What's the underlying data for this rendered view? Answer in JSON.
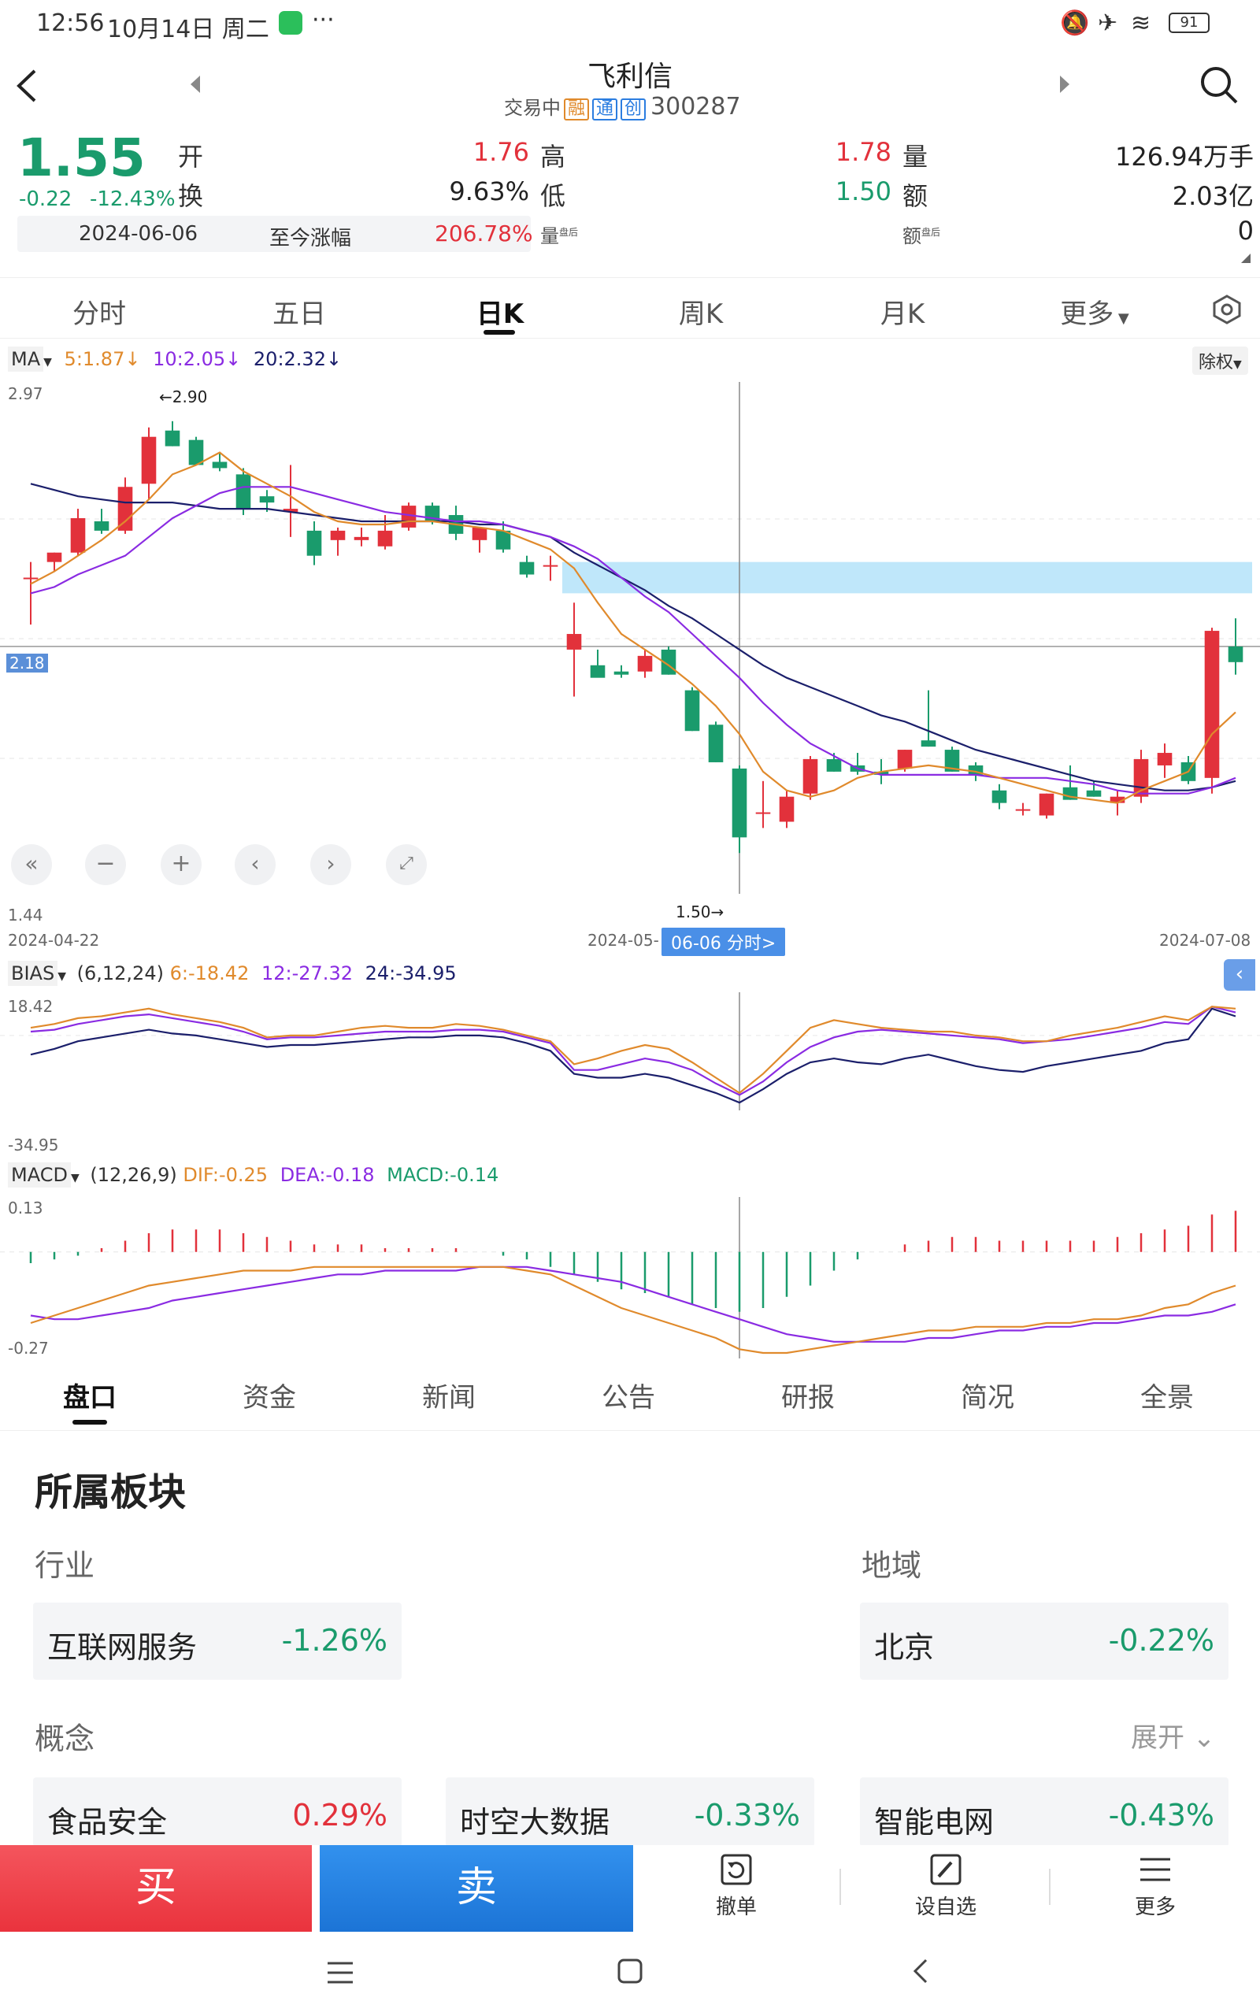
{
  "status_bar": {
    "time": "12:56",
    "date": "10月14日 周二",
    "more": "···",
    "battery": "91"
  },
  "header": {
    "title": "飞利信",
    "trading_status": "交易中",
    "tag_rong": "融",
    "tag_tong": "通",
    "tag_chuang": "创",
    "code": "300287"
  },
  "quote": {
    "price": "1.55",
    "change": "-0.22",
    "change_pct": "-12.43%",
    "open_label": "开",
    "open_value": "1.76",
    "high_label": "高",
    "high_value": "1.78",
    "volume_label": "量",
    "volume_value": "126.94万手",
    "turnover_label": "换",
    "turnover_value": "9.63%",
    "low_label": "低",
    "low_value": "1.50",
    "amount_label": "额",
    "amount_value": "2.03亿",
    "since_date": "2024-06-06",
    "since_label": "至今涨幅",
    "since_value": "206.78%",
    "after_vol_label": "量",
    "after_amt_label": "额",
    "after_tag": "盘后",
    "after_value": "0"
  },
  "period_tabs": [
    "分时",
    "五日",
    "日K",
    "周K",
    "月K",
    "更多"
  ],
  "ma_legend": {
    "name": "MA",
    "ma5": "5:1.87",
    "ma10": "10:2.05",
    "ma20": "20:2.32",
    "right_btn": "除权"
  },
  "price_axis": {
    "top": "2.97",
    "mid": "2.18",
    "bottom": "1.44",
    "high_mark": "←2.90",
    "low_mark": "1.50→"
  },
  "date_axis": {
    "left": "2024-04-22",
    "mid": "2024-05-",
    "cursor": "06-06 分时>",
    "right": "2024-07-08"
  },
  "bias_legend": {
    "name": "BIAS",
    "params": "(6,12,24)",
    "b6": "6:-18.42",
    "b12": "12:-27.32",
    "b24": "24:-34.95",
    "top": "18.42",
    "bottom": "-34.95"
  },
  "macd_legend": {
    "name": "MACD",
    "params": "(12,26,9)",
    "dif": "DIF:-0.25",
    "dea": "DEA:-0.18",
    "macd": "MACD:-0.14",
    "top": "0.13",
    "bottom": "-0.27"
  },
  "info_tabs": [
    "盘口",
    "资金",
    "新闻",
    "公告",
    "研报",
    "简况",
    "全景"
  ],
  "sector": {
    "title": "所属板块",
    "industry_label": "行业",
    "region_label": "地域",
    "concept_label": "概念",
    "expand_label": "展开",
    "industry": {
      "name": "互联网服务",
      "value": "-1.26%"
    },
    "region": {
      "name": "北京",
      "value": "-0.22%"
    },
    "concepts": [
      {
        "name": "食品安全",
        "value": "0.29%"
      },
      {
        "name": "时空大数据",
        "value": "-0.33%"
      },
      {
        "name": "智能电网",
        "value": "-0.43%"
      }
    ]
  },
  "actions": {
    "buy": "买",
    "sell": "卖",
    "cancel": "撤单",
    "watch": "设自选",
    "more": "更多"
  },
  "colors": {
    "up": "#e2313b",
    "down": "#1a9b6c",
    "ma5": "#e08a2c",
    "ma10": "#8a2be2",
    "ma20": "#1b1f6b",
    "buy": "#f0424c",
    "sell": "#1f7fe0"
  },
  "chart_data": {
    "type": "candlestick",
    "x_start": "2024-04-22",
    "x_end": "2024-07-08",
    "ylim": [
      1.44,
      2.97
    ],
    "candles": [
      {
        "o": 2.4,
        "h": 2.45,
        "l": 2.25,
        "c": 2.4
      },
      {
        "o": 2.45,
        "h": 2.48,
        "l": 2.42,
        "c": 2.48
      },
      {
        "o": 2.48,
        "h": 2.62,
        "l": 2.47,
        "c": 2.59
      },
      {
        "o": 2.58,
        "h": 2.62,
        "l": 2.54,
        "c": 2.55
      },
      {
        "o": 2.55,
        "h": 2.72,
        "l": 2.54,
        "c": 2.69
      },
      {
        "o": 2.7,
        "h": 2.88,
        "l": 2.65,
        "c": 2.85
      },
      {
        "o": 2.87,
        "h": 2.9,
        "l": 2.82,
        "c": 2.82
      },
      {
        "o": 2.84,
        "h": 2.85,
        "l": 2.76,
        "c": 2.76
      },
      {
        "o": 2.77,
        "h": 2.8,
        "l": 2.74,
        "c": 2.75
      },
      {
        "o": 2.73,
        "h": 2.75,
        "l": 2.6,
        "c": 2.62
      },
      {
        "o": 2.66,
        "h": 2.68,
        "l": 2.61,
        "c": 2.64
      },
      {
        "o": 2.61,
        "h": 2.76,
        "l": 2.53,
        "c": 2.62
      },
      {
        "o": 2.55,
        "h": 2.58,
        "l": 2.44,
        "c": 2.47
      },
      {
        "o": 2.52,
        "h": 2.56,
        "l": 2.47,
        "c": 2.55
      },
      {
        "o": 2.52,
        "h": 2.56,
        "l": 2.5,
        "c": 2.53
      },
      {
        "o": 2.5,
        "h": 2.6,
        "l": 2.49,
        "c": 2.55
      },
      {
        "o": 2.56,
        "h": 2.64,
        "l": 2.55,
        "c": 2.63
      },
      {
        "o": 2.63,
        "h": 2.64,
        "l": 2.57,
        "c": 2.58
      },
      {
        "o": 2.6,
        "h": 2.63,
        "l": 2.52,
        "c": 2.54
      },
      {
        "o": 2.52,
        "h": 2.56,
        "l": 2.48,
        "c": 2.56
      },
      {
        "o": 2.55,
        "h": 2.58,
        "l": 2.48,
        "c": 2.49
      },
      {
        "o": 2.45,
        "h": 2.47,
        "l": 2.4,
        "c": 2.41
      },
      {
        "o": 2.44,
        "h": 2.47,
        "l": 2.39,
        "c": 2.44
      },
      {
        "o": 2.17,
        "h": 2.32,
        "l": 2.02,
        "c": 2.22
      },
      {
        "o": 2.12,
        "h": 2.17,
        "l": 2.09,
        "c": 2.08
      },
      {
        "o": 2.1,
        "h": 2.12,
        "l": 2.08,
        "c": 2.09
      },
      {
        "o": 2.1,
        "h": 2.17,
        "l": 2.08,
        "c": 2.15
      },
      {
        "o": 2.17,
        "h": 2.18,
        "l": 2.09,
        "c": 2.09
      },
      {
        "o": 2.04,
        "h": 2.05,
        "l": 1.91,
        "c": 1.91
      },
      {
        "o": 1.93,
        "h": 1.94,
        "l": 1.81,
        "c": 1.81
      },
      {
        "o": 1.79,
        "h": 1.8,
        "l": 1.52,
        "c": 1.57
      },
      {
        "o": 1.65,
        "h": 1.75,
        "l": 1.6,
        "c": 1.65
      },
      {
        "o": 1.62,
        "h": 1.72,
        "l": 1.6,
        "c": 1.7
      },
      {
        "o": 1.71,
        "h": 1.83,
        "l": 1.69,
        "c": 1.82
      },
      {
        "o": 1.82,
        "h": 1.84,
        "l": 1.78,
        "c": 1.78
      },
      {
        "o": 1.8,
        "h": 1.84,
        "l": 1.77,
        "c": 1.78
      },
      {
        "o": 1.78,
        "h": 1.82,
        "l": 1.74,
        "c": 1.77
      },
      {
        "o": 1.79,
        "h": 1.85,
        "l": 1.78,
        "c": 1.85
      },
      {
        "o": 1.88,
        "h": 2.04,
        "l": 1.86,
        "c": 1.86
      },
      {
        "o": 1.85,
        "h": 1.86,
        "l": 1.78,
        "c": 1.78
      },
      {
        "o": 1.8,
        "h": 1.81,
        "l": 1.75,
        "c": 1.77
      },
      {
        "o": 1.72,
        "h": 1.74,
        "l": 1.66,
        "c": 1.68
      },
      {
        "o": 1.66,
        "h": 1.68,
        "l": 1.64,
        "c": 1.66
      },
      {
        "o": 1.64,
        "h": 1.71,
        "l": 1.63,
        "c": 1.71
      },
      {
        "o": 1.73,
        "h": 1.8,
        "l": 1.69,
        "c": 1.69
      },
      {
        "o": 1.72,
        "h": 1.75,
        "l": 1.7,
        "c": 1.7
      },
      {
        "o": 1.68,
        "h": 1.72,
        "l": 1.64,
        "c": 1.7
      },
      {
        "o": 1.7,
        "h": 1.85,
        "l": 1.68,
        "c": 1.82
      },
      {
        "o": 1.8,
        "h": 1.87,
        "l": 1.76,
        "c": 1.84
      },
      {
        "o": 1.81,
        "h": 1.83,
        "l": 1.74,
        "c": 1.75
      },
      {
        "o": 1.76,
        "h": 2.24,
        "l": 1.71,
        "c": 2.23
      },
      {
        "o": 2.18,
        "h": 2.27,
        "l": 2.09,
        "c": 2.13
      }
    ],
    "ma5": [
      2.38,
      2.42,
      2.47,
      2.52,
      2.58,
      2.65,
      2.73,
      2.76,
      2.8,
      2.74,
      2.7,
      2.66,
      2.61,
      2.58,
      2.57,
      2.57,
      2.58,
      2.58,
      2.57,
      2.56,
      2.55,
      2.52,
      2.49,
      2.43,
      2.32,
      2.22,
      2.17,
      2.12,
      2.06,
      1.99,
      1.9,
      1.78,
      1.72,
      1.7,
      1.72,
      1.76,
      1.78,
      1.79,
      1.8,
      1.79,
      1.78,
      1.76,
      1.74,
      1.72,
      1.7,
      1.69,
      1.68,
      1.72,
      1.75,
      1.78,
      1.9,
      1.97
    ],
    "ma10": [
      2.35,
      2.37,
      2.41,
      2.44,
      2.47,
      2.53,
      2.59,
      2.63,
      2.67,
      2.69,
      2.69,
      2.69,
      2.67,
      2.65,
      2.63,
      2.61,
      2.6,
      2.59,
      2.58,
      2.58,
      2.57,
      2.55,
      2.53,
      2.5,
      2.46,
      2.4,
      2.34,
      2.29,
      2.22,
      2.15,
      2.08,
      2.0,
      1.93,
      1.87,
      1.83,
      1.79,
      1.77,
      1.77,
      1.77,
      1.77,
      1.77,
      1.76,
      1.76,
      1.76,
      1.75,
      1.74,
      1.72,
      1.71,
      1.71,
      1.71,
      1.73,
      1.76
    ],
    "ma20": [
      2.7,
      2.68,
      2.66,
      2.65,
      2.64,
      2.64,
      2.64,
      2.63,
      2.62,
      2.62,
      2.62,
      2.61,
      2.6,
      2.59,
      2.58,
      2.58,
      2.58,
      2.58,
      2.58,
      2.57,
      2.57,
      2.55,
      2.53,
      2.48,
      2.44,
      2.4,
      2.36,
      2.31,
      2.27,
      2.22,
      2.17,
      2.12,
      2.08,
      2.05,
      2.02,
      1.99,
      1.96,
      1.94,
      1.91,
      1.88,
      1.85,
      1.83,
      1.81,
      1.79,
      1.77,
      1.75,
      1.74,
      1.73,
      1.72,
      1.72,
      1.73,
      1.75
    ],
    "bias": {
      "ylim": [
        -34.95,
        18.42
      ],
      "b6": [
        4,
        6,
        9,
        10,
        12,
        14,
        11,
        9,
        7,
        4,
        -1,
        0,
        0,
        2,
        4,
        5,
        4,
        4,
        6,
        5,
        3,
        0,
        -3,
        -15,
        -12,
        -8,
        -5,
        -7,
        -14,
        -22,
        -30,
        -20,
        -8,
        4,
        8,
        6,
        4,
        3,
        2,
        2,
        0,
        -1,
        -3,
        -3,
        0,
        2,
        4,
        7,
        10,
        8,
        15,
        14
      ],
      "b12": [
        2,
        3,
        6,
        8,
        10,
        11,
        9,
        7,
        5,
        2,
        -2,
        -1,
        -1,
        0,
        1,
        2,
        2,
        2,
        3,
        3,
        2,
        -1,
        -4,
        -18,
        -18,
        -15,
        -12,
        -14,
        -18,
        -25,
        -31,
        -24,
        -14,
        -6,
        -1,
        2,
        3,
        2,
        1,
        0,
        -1,
        -2,
        -4,
        -3,
        -2,
        0,
        2,
        4,
        7,
        6,
        15,
        12
      ],
      "b24": [
        -10,
        -7,
        -3,
        -1,
        1,
        3,
        1,
        0,
        -2,
        -4,
        -6,
        -5,
        -5,
        -4,
        -3,
        -2,
        -1,
        -1,
        0,
        0,
        -1,
        -4,
        -8,
        -20,
        -22,
        -22,
        -20,
        -22,
        -26,
        -30,
        -35,
        -28,
        -20,
        -14,
        -12,
        -14,
        -15,
        -12,
        -10,
        -13,
        -16,
        -18,
        -19,
        -16,
        -14,
        -12,
        -10,
        -8,
        -4,
        -2,
        14,
        10
      ]
    },
    "macd": {
      "ylim": [
        -0.27,
        0.13
      ],
      "dif": [
        -0.19,
        -0.17,
        -0.15,
        -0.13,
        -0.11,
        -0.09,
        -0.08,
        -0.07,
        -0.06,
        -0.05,
        -0.05,
        -0.05,
        -0.04,
        -0.04,
        -0.04,
        -0.04,
        -0.04,
        -0.04,
        -0.04,
        -0.04,
        -0.04,
        -0.05,
        -0.06,
        -0.09,
        -0.12,
        -0.15,
        -0.17,
        -0.19,
        -0.21,
        -0.23,
        -0.26,
        -0.27,
        -0.27,
        -0.26,
        -0.25,
        -0.24,
        -0.23,
        -0.22,
        -0.21,
        -0.21,
        -0.2,
        -0.2,
        -0.2,
        -0.19,
        -0.19,
        -0.18,
        -0.18,
        -0.17,
        -0.15,
        -0.14,
        -0.11,
        -0.09
      ],
      "dea": [
        -0.17,
        -0.18,
        -0.18,
        -0.17,
        -0.16,
        -0.15,
        -0.13,
        -0.12,
        -0.11,
        -0.1,
        -0.09,
        -0.08,
        -0.07,
        -0.06,
        -0.06,
        -0.05,
        -0.05,
        -0.05,
        -0.05,
        -0.04,
        -0.04,
        -0.04,
        -0.05,
        -0.06,
        -0.07,
        -0.08,
        -0.1,
        -0.12,
        -0.14,
        -0.16,
        -0.18,
        -0.2,
        -0.22,
        -0.23,
        -0.24,
        -0.24,
        -0.24,
        -0.24,
        -0.23,
        -0.23,
        -0.22,
        -0.21,
        -0.21,
        -0.2,
        -0.2,
        -0.19,
        -0.19,
        -0.18,
        -0.17,
        -0.17,
        -0.16,
        -0.14
      ],
      "hist": [
        -0.03,
        -0.02,
        -0.01,
        0.01,
        0.03,
        0.05,
        0.06,
        0.06,
        0.06,
        0.05,
        0.04,
        0.03,
        0.02,
        0.02,
        0.02,
        0.01,
        0.01,
        0.01,
        0.01,
        0.0,
        -0.01,
        -0.02,
        -0.04,
        -0.06,
        -0.08,
        -0.1,
        -0.11,
        -0.12,
        -0.14,
        -0.15,
        -0.16,
        -0.15,
        -0.12,
        -0.09,
        -0.05,
        -0.02,
        0.0,
        0.02,
        0.03,
        0.04,
        0.04,
        0.03,
        0.03,
        0.03,
        0.03,
        0.03,
        0.04,
        0.05,
        0.06,
        0.07,
        0.1,
        0.11
      ]
    }
  }
}
